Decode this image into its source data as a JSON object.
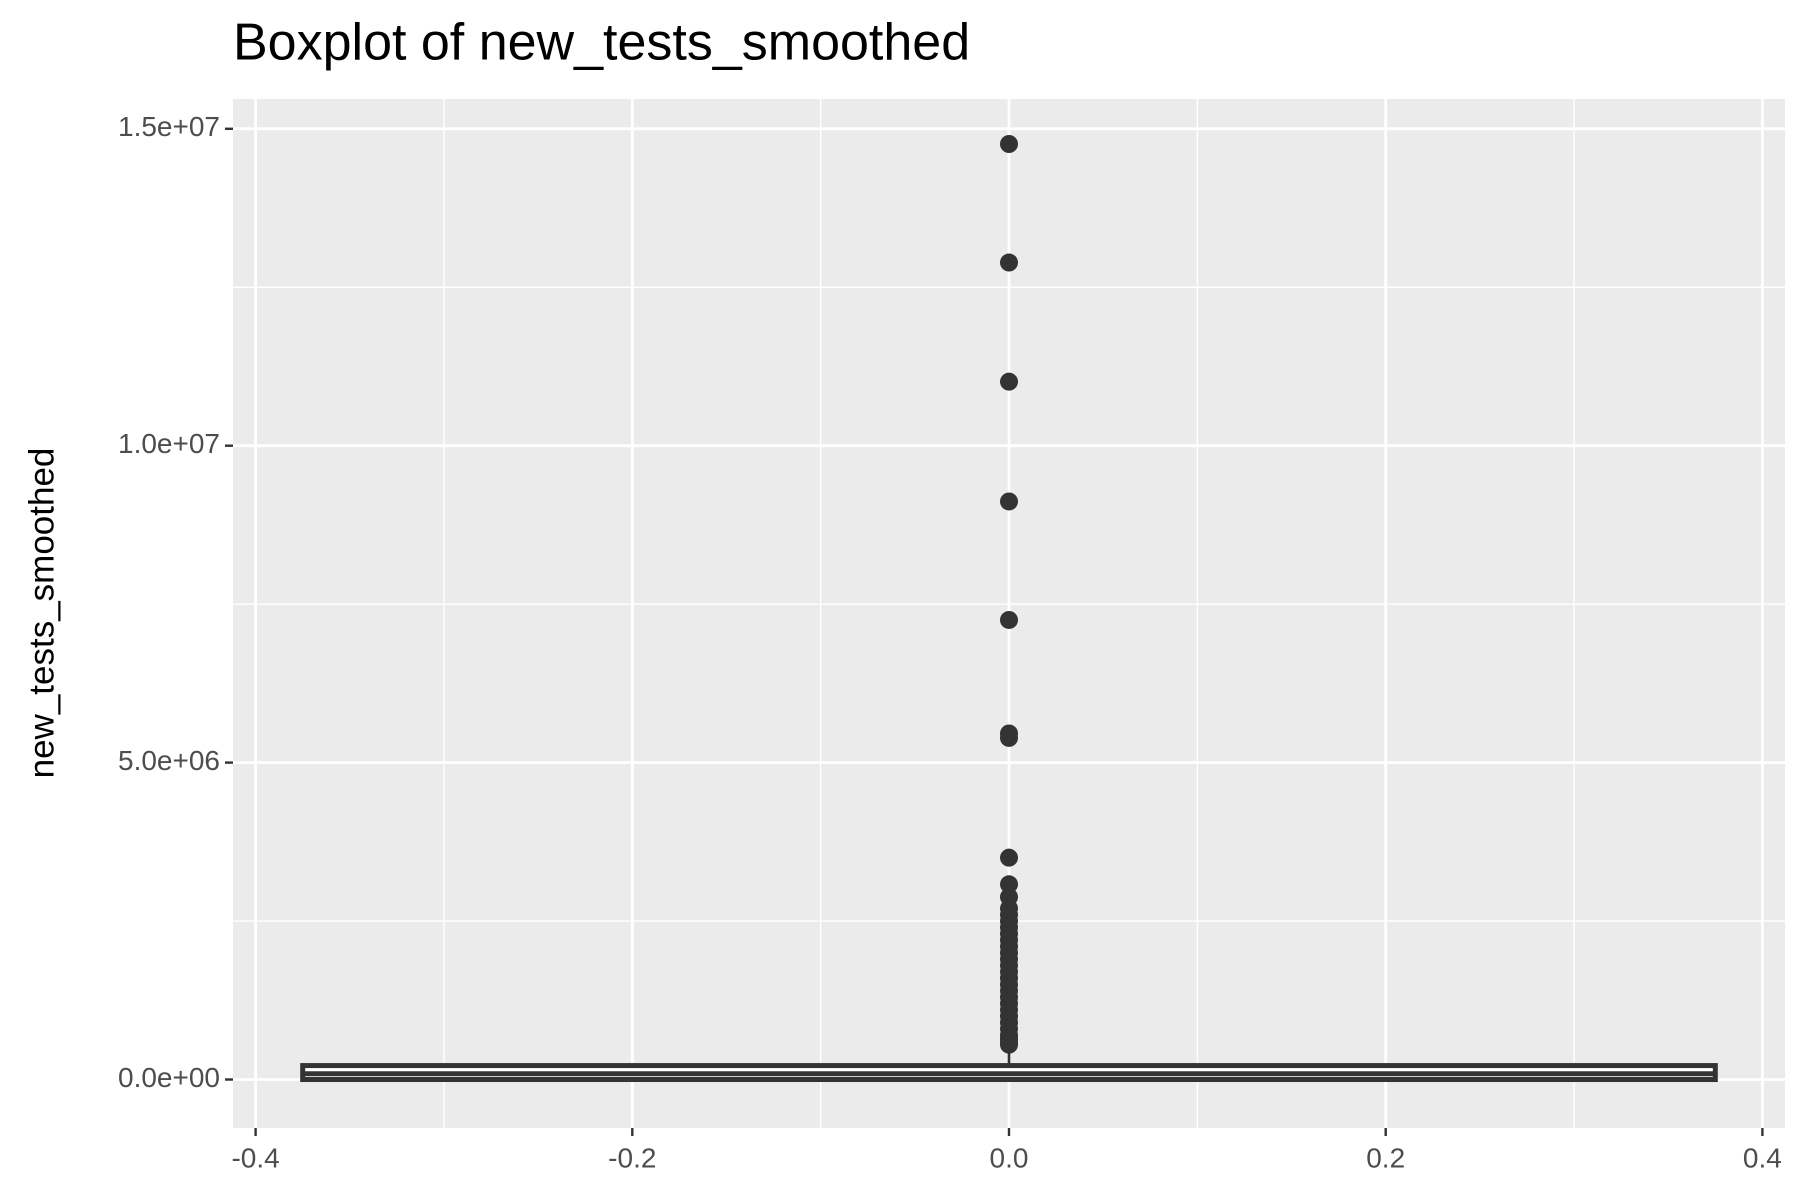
{
  "chart_data": {
    "type": "boxplot",
    "title": "Boxplot of new_tests_smoothed",
    "y_label": "new_tests_smoothed",
    "xlim": [
      -0.412,
      0.412
    ],
    "xticks": [
      -0.4,
      -0.2,
      {
        "value": 0,
        "label": "0.0"
      },
      0.2,
      0.4
    ],
    "x_minor_grid": [
      -0.3,
      -0.1,
      0.1,
      0.3
    ],
    "ylim": [
      -765000,
      15470000
    ],
    "yticks": [
      {
        "value": 0,
        "label": "0.0e+00"
      },
      {
        "value": 5000000,
        "label": "5.0e+06"
      },
      {
        "value": 10000000,
        "label": "1.0e+07"
      },
      {
        "value": 15000000,
        "label": "1.5e+07"
      }
    ],
    "y_minor_grid": [
      2500000,
      7500000,
      12500000
    ],
    "grid": true,
    "panel_color": "#ebebeb",
    "color": "#333333",
    "box_fill": "#ffffff",
    "boxes": [
      {
        "x": 0,
        "width": 0.75,
        "whisker_low": 0,
        "q1": 0,
        "median": 90000,
        "q3": 220000,
        "whisker_high": 470000,
        "outliers": [
          14760000,
          12890000,
          11010000,
          9120000,
          7250000,
          5460000,
          5390000,
          3500000,
          3080000,
          2880000,
          2700000,
          2600000,
          2500000,
          2400000,
          2300000,
          2200000,
          2100000,
          2000000,
          1900000,
          1800000,
          1700000,
          1600000,
          1500000,
          1400000,
          1300000,
          1200000,
          1100000,
          1000000,
          900000,
          800000,
          700000,
          650000,
          600000,
          550000
        ]
      }
    ]
  }
}
